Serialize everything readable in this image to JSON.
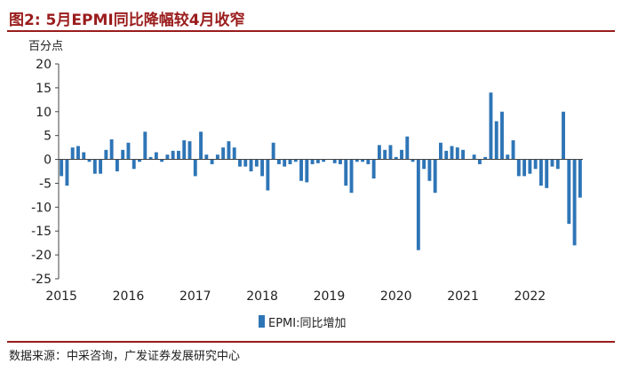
{
  "figure": {
    "title": "图2:  5月EPMI同比降幅较4月收窄",
    "source": "数据来源：中采咨询，广发证券发展研究中心"
  },
  "chart_data": {
    "type": "bar",
    "ylabel": "百分点",
    "ylim": [
      -25,
      20
    ],
    "yticks": [
      -25,
      -20,
      -15,
      -10,
      -5,
      0,
      5,
      10,
      15,
      20
    ],
    "xticks": [
      "2015",
      "2016",
      "2017",
      "2018",
      "2019",
      "2020",
      "2021",
      "2022"
    ],
    "legend_position": "bottom",
    "grid": false,
    "series": [
      {
        "name": "EPMI:同比增加",
        "color": "#2e75b6",
        "start": "2015-01",
        "values": [
          -3.5,
          -5.5,
          2.5,
          2.8,
          1.5,
          -0.5,
          -3.0,
          -3.0,
          2.0,
          4.2,
          -2.5,
          2.0,
          3.5,
          -2.0,
          -0.5,
          5.8,
          0.5,
          1.5,
          -0.5,
          1.0,
          1.8,
          1.8,
          4.0,
          3.8,
          -3.5,
          5.8,
          1.0,
          -1.0,
          1.0,
          2.5,
          3.8,
          2.5,
          -1.5,
          -1.5,
          -2.5,
          -1.5,
          -3.5,
          -6.5,
          3.5,
          -1.0,
          -1.5,
          -1.0,
          -0.5,
          -4.5,
          -4.8,
          -1.0,
          -0.8,
          -0.5,
          0.0,
          -0.8,
          -1.0,
          -5.5,
          -7.0,
          -0.5,
          -0.5,
          -1.0,
          -4.0,
          3.0,
          2.0,
          3.0,
          0.5,
          2.0,
          4.8,
          -0.5,
          -19.0,
          -2.0,
          -4.5,
          -7.0,
          3.5,
          1.8,
          2.8,
          2.5,
          2.0,
          0.0,
          1.0,
          -1.0,
          0.5,
          14.0,
          8.0,
          10.0,
          1.0,
          4.0,
          -3.5,
          -3.5,
          -3.0,
          -2.0,
          -5.5,
          -6.0,
          -1.5,
          -2.0,
          10.0,
          -13.5,
          -18.0,
          -8.0
        ]
      }
    ]
  }
}
